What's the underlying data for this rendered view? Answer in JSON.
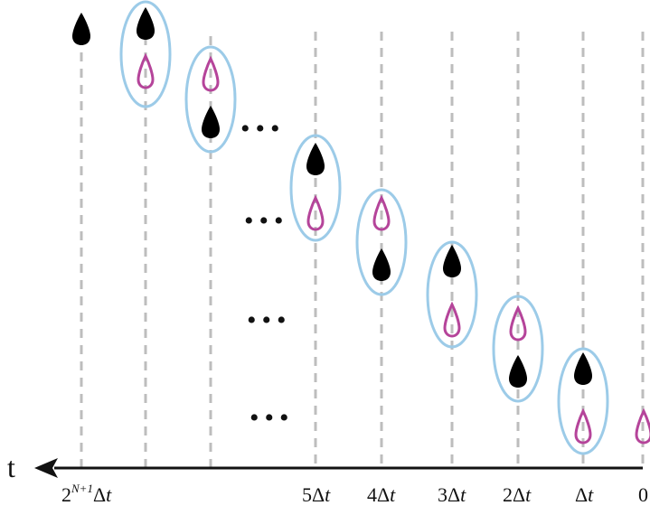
{
  "axis": {
    "label": "t",
    "ticks": [
      {
        "base": "2",
        "sup": "N+1",
        "tail": "Δ",
        "var": "t"
      },
      {
        "base": "",
        "sup": "",
        "tail": "5Δ",
        "var": "t"
      },
      {
        "base": "",
        "sup": "",
        "tail": "4Δ",
        "var": "t"
      },
      {
        "base": "",
        "sup": "",
        "tail": "3Δ",
        "var": "t"
      },
      {
        "base": "",
        "sup": "",
        "tail": "2Δ",
        "var": "t"
      },
      {
        "base": "",
        "sup": "",
        "tail": "Δ",
        "var": "t"
      },
      {
        "base": "",
        "sup": "",
        "tail": "0",
        "var": ""
      }
    ]
  },
  "ellipsis": [
    "•••",
    "•••",
    "•••",
    "•••"
  ],
  "colors": {
    "axis": "#111111",
    "gridline": "#bdbdbd",
    "filled_drop": "#000000",
    "outline_drop": "#b5449a",
    "ellipse": "#9ccbe8"
  }
}
